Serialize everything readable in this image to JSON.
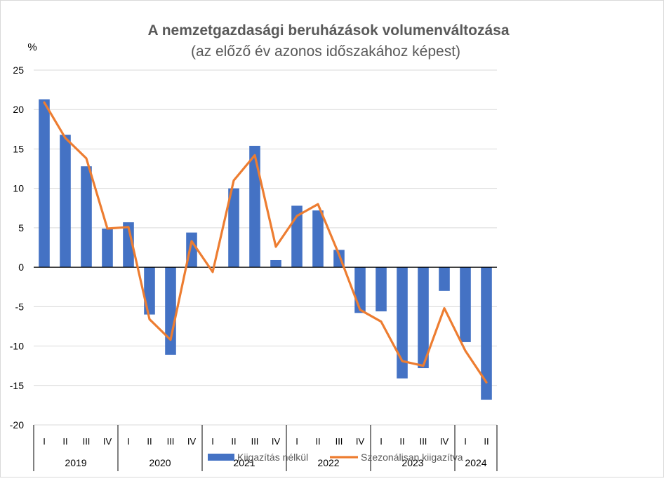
{
  "chart_data": {
    "type": "bar",
    "title": "A nemzetgazdasági beruházások volumenváltozása",
    "subtitle": "(az előző év azonos időszakához képest)",
    "ylabel": "%",
    "ylim": [
      -20,
      25
    ],
    "yticks": [
      25,
      20,
      15,
      10,
      5,
      0,
      -5,
      -10,
      -15,
      -20
    ],
    "grid": true,
    "legend_position": "bottom",
    "quarters": [
      "I",
      "II",
      "III",
      "IV",
      "I",
      "II",
      "III",
      "IV",
      "I",
      "II",
      "III",
      "IV",
      "I",
      "II",
      "III",
      "IV",
      "I",
      "II",
      "III",
      "IV",
      "I",
      "II"
    ],
    "years": [
      {
        "label": "2019",
        "count": 4
      },
      {
        "label": "2020",
        "count": 4
      },
      {
        "label": "2021",
        "count": 4
      },
      {
        "label": "2022",
        "count": 4
      },
      {
        "label": "2023",
        "count": 4
      },
      {
        "label": "2024",
        "count": 2
      }
    ],
    "series": [
      {
        "name": "Kiigazítás nélkül",
        "type": "bar",
        "color": "#4472C4",
        "values": [
          21.3,
          16.8,
          12.8,
          4.9,
          5.7,
          -6.0,
          -11.1,
          4.4,
          0.0,
          10.0,
          15.4,
          0.9,
          7.8,
          7.2,
          2.2,
          -5.8,
          -5.6,
          -14.1,
          -12.8,
          -3.0,
          -9.5,
          -16.8
        ]
      },
      {
        "name": "Szezonálisan kiigazítva",
        "type": "line",
        "color": "#ED7D31",
        "values": [
          20.9,
          16.4,
          13.8,
          4.9,
          5.1,
          -6.6,
          -9.2,
          3.3,
          -0.6,
          11.0,
          14.2,
          2.6,
          6.5,
          8.0,
          1.6,
          -5.4,
          -6.9,
          -11.9,
          -12.5,
          -5.2,
          -10.6,
          -14.6
        ]
      }
    ]
  }
}
